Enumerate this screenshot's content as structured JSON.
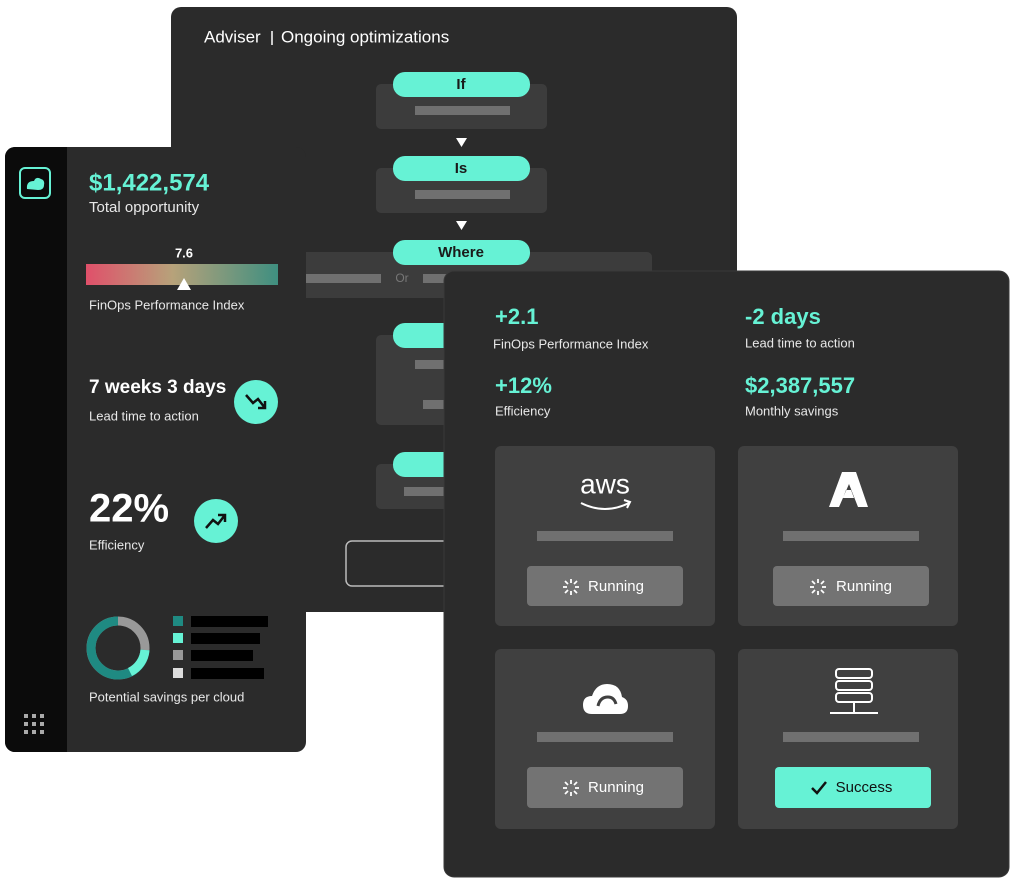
{
  "adviser": {
    "title": "Adviser",
    "subtitle": "Ongoing optimizations",
    "steps": [
      "If",
      "Is",
      "Where"
    ],
    "or": "Or"
  },
  "summary": {
    "total_opportunity": {
      "value": "$1,422,574",
      "label": "Total opportunity"
    },
    "performance_index": {
      "value": "7.6",
      "label": "FinOps Performance Index"
    },
    "lead_time": {
      "value": "7 weeks 3 days",
      "label": "Lead time to action"
    },
    "efficiency": {
      "value": "22%",
      "label": "Efficiency"
    },
    "savings_per_cloud": {
      "label": "Potential savings per cloud"
    }
  },
  "results": {
    "stats": [
      {
        "value": "+2.1",
        "label": "FinOps Performance Index"
      },
      {
        "value": "-2 days",
        "label": "Lead time to action"
      },
      {
        "value": "+12%",
        "label": "Efficiency"
      },
      {
        "value": "$2,387,557",
        "label": "Monthly savings"
      }
    ],
    "providers": [
      {
        "logo": "aws",
        "status": "Running"
      },
      {
        "status": "Running"
      },
      {
        "status": "Running"
      },
      {
        "status": "Success"
      }
    ]
  }
}
